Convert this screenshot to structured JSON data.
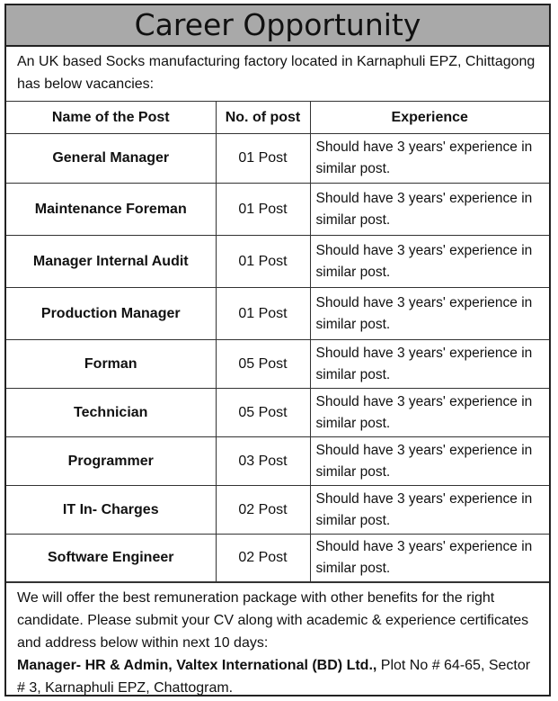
{
  "title": "Career Opportunity",
  "intro": "An UK based Socks manufacturing factory located in Karnaphuli EPZ, Chittagong has below vacancies:",
  "table": {
    "headers": [
      "Name of the Post",
      "No. of post",
      "Experience"
    ],
    "rows": [
      {
        "name": "General Manager",
        "count": "01 Post",
        "experience": "Should have 3 years' experience in similar post."
      },
      {
        "name": "Maintenance Foreman",
        "count": "01 Post",
        "experience": "Should have 3 years' experience in similar post."
      },
      {
        "name": "Manager Internal Audit",
        "count": "01 Post",
        "experience": "Should have 3 years' experience in similar post."
      },
      {
        "name": "Production Manager",
        "count": "01 Post",
        "experience": "Should have 3 years' experience in similar post."
      },
      {
        "name": "Forman",
        "count": "05 Post",
        "experience": "Should have 3 years' experience in similar post."
      },
      {
        "name": "Technician",
        "count": "05 Post",
        "experience": "Should have 3 years' experience in similar post."
      },
      {
        "name": "Programmer",
        "count": "03 Post",
        "experience": "Should have 3 years' experience in similar post."
      },
      {
        "name": "IT In- Charges",
        "count": "02 Post",
        "experience": "Should have 3 years' experience in similar post."
      },
      {
        "name": "Software Engineer",
        "count": "02 Post",
        "experience": "Should have 3 years' experience in similar post."
      }
    ]
  },
  "footer": {
    "text": "We will offer the best remuneration package with other benefits for the right candidate. Please submit your CV along with academic & experience certificates and address below within next 10 days:",
    "contact_bold": "Manager- HR & Admin, Valtex International (BD) Ltd.,",
    "contact_address": " Plot No # 64-65, Sector # 3, Karnaphuli EPZ, Chattogram."
  },
  "colors": {
    "header_band": "#a9a9a9",
    "border": "#222222"
  }
}
